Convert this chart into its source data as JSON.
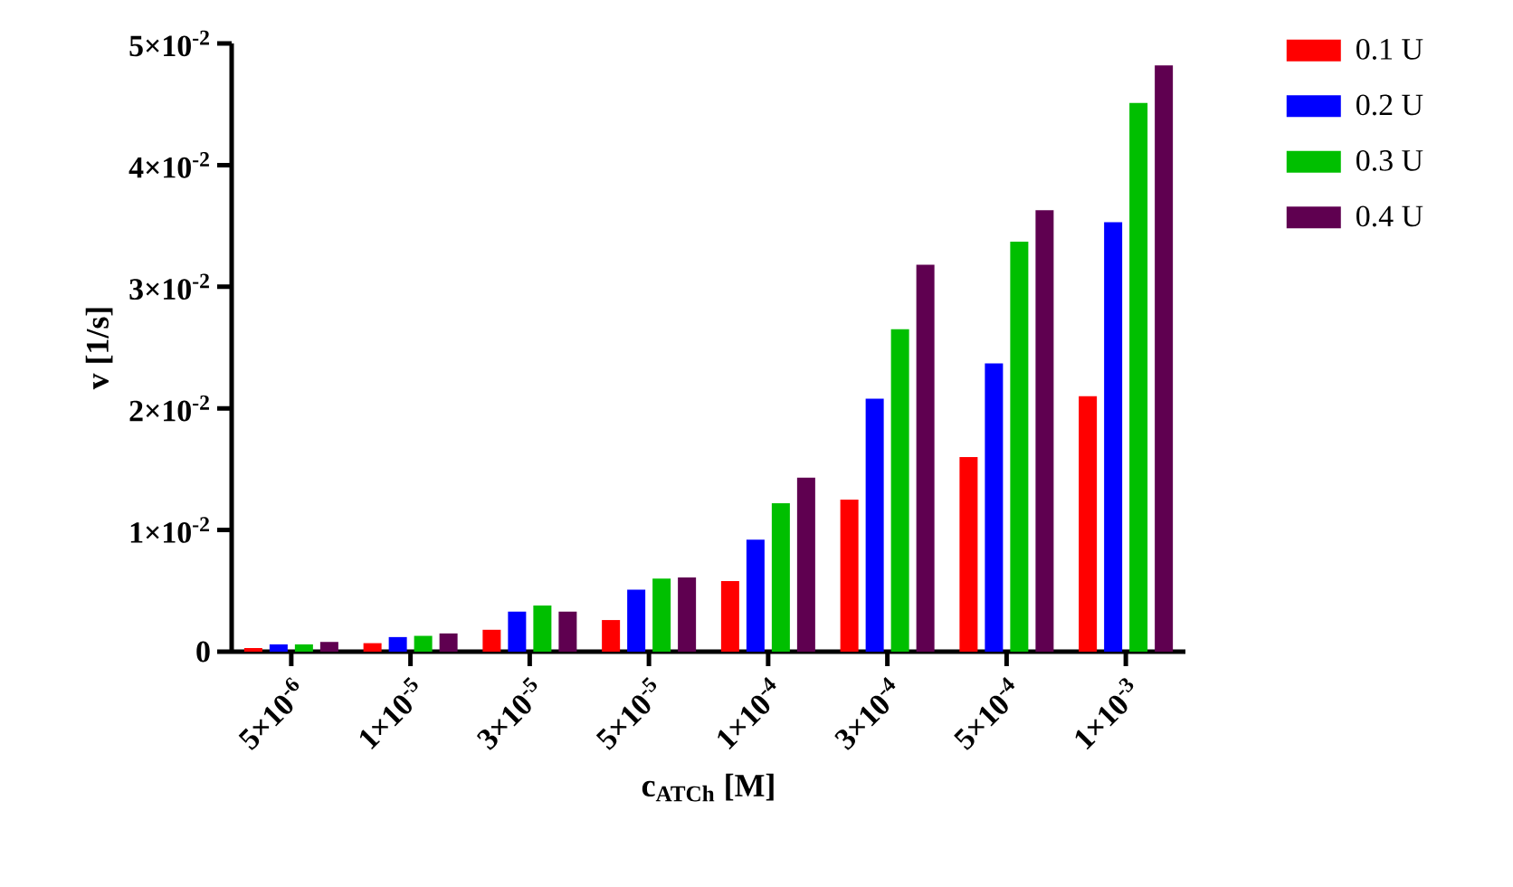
{
  "chart_data": {
    "type": "bar",
    "xlabel": "c$_{ATCh}$ [M]",
    "ylabel": "v [1/s]",
    "categories": [
      "5×10$^{-6}$",
      "1×10$^{-5}$",
      "3×10$^{-5}$",
      "5×10$^{-5}$",
      "1×10$^{-4}$",
      "3×10$^{-4}$",
      "5×10$^{-4}$",
      "1×10$^{-3}$"
    ],
    "series": [
      {
        "name": "0.1 U",
        "color": "#ff0000",
        "values": [
          0.0003,
          0.0007,
          0.0018,
          0.0026,
          0.0058,
          0.0125,
          0.016,
          0.021
        ]
      },
      {
        "name": "0.2 U",
        "color": "#0000ff",
        "values": [
          0.0006,
          0.0012,
          0.0033,
          0.0051,
          0.0092,
          0.0208,
          0.0237,
          0.0353
        ]
      },
      {
        "name": "0.3 U",
        "color": "#00bf00",
        "values": [
          0.0006,
          0.0013,
          0.0038,
          0.006,
          0.0122,
          0.0265,
          0.0337,
          0.0451
        ]
      },
      {
        "name": "0.4 U",
        "color": "#5f0050",
        "values": [
          0.0008,
          0.0015,
          0.0033,
          0.0061,
          0.0143,
          0.0318,
          0.0363,
          0.0482
        ]
      }
    ],
    "ylim": [
      0,
      0.05
    ],
    "yticks": [
      0,
      {
        "value": 0.01,
        "label": "1×10$^{-2}$"
      },
      {
        "value": 0.02,
        "label": "2×10$^{-2}$"
      },
      {
        "value": 0.03,
        "label": "3×10$^{-2}$"
      },
      {
        "value": 0.04,
        "label": "4×10$^{-2}$"
      },
      {
        "value": 0.05,
        "label": "5×10$^{-2}$"
      }
    ],
    "legend": "top right"
  }
}
